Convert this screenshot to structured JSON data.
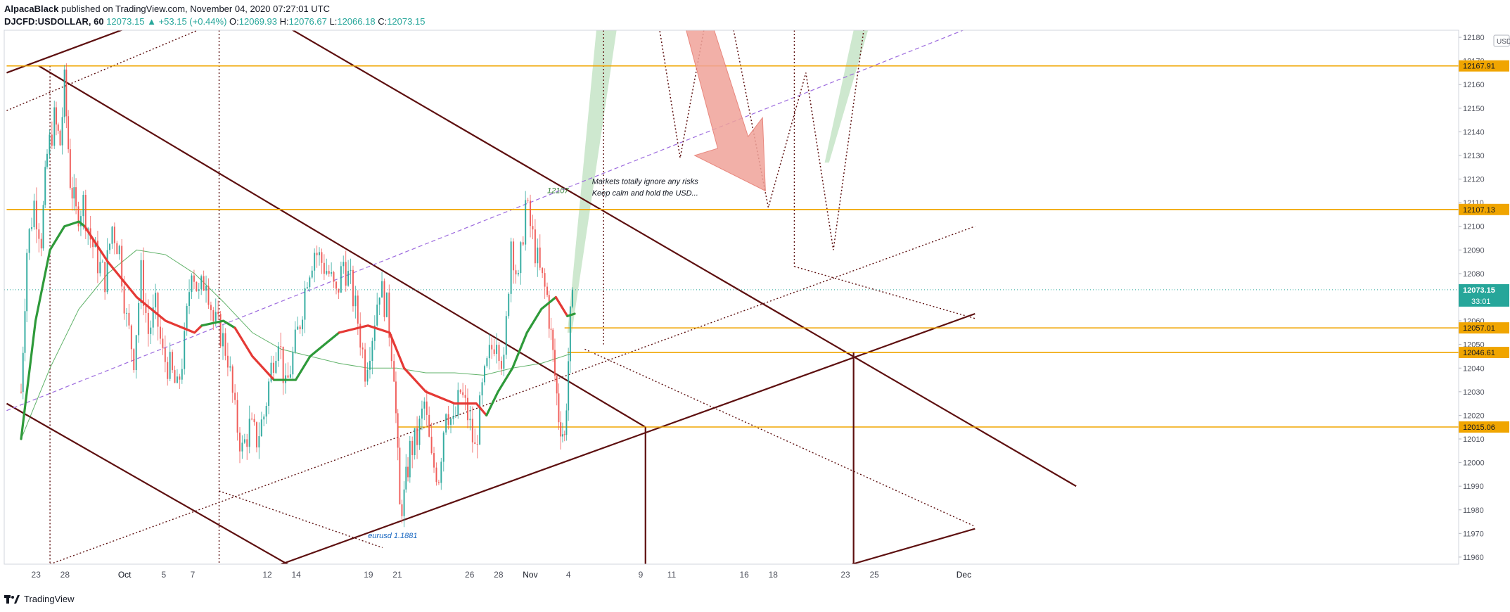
{
  "header": {
    "author": "AlpacaBlack",
    "published_text": "published on TradingView.com, November 04, 2020 07:27:01 UTC",
    "symbol": "DJCFD:USDOLLAR, 60",
    "last": "12073.15",
    "change": "+53.15 (+0.44%)",
    "change_arrow": "▲",
    "o_label": "O:",
    "o_value": "12069.93",
    "h_label": "H:",
    "h_value": "12076.67",
    "l_label": "L:",
    "l_value": "12066.18",
    "c_label": "C:",
    "c_value": "12073.15"
  },
  "footer": {
    "brand": "TradingView",
    "logo_icon": "tradingview-logo-icon"
  },
  "colors": {
    "up": "#26a69a",
    "down": "#ef5350",
    "channel": "#5d0f0f",
    "level": "#f0a500",
    "ema_green": "#2e9a3a",
    "ema_red": "#e53935",
    "dashed_purple": "#9c6ade",
    "arrow_fill": "#f0a39a",
    "fan_green": "#a5d6a7"
  },
  "chart_data": {
    "type": "candlestick",
    "symbol": "DJCFD:USDOLLAR",
    "interval": "60",
    "currency_badge": "USD",
    "ylim": [
      11957,
      12183
    ],
    "y_ticks": [
      11960,
      11970,
      11980,
      11990,
      12000,
      12010,
      12020,
      12030,
      12040,
      12050,
      12060,
      12070,
      12080,
      12090,
      12100,
      12110,
      12120,
      12130,
      12140,
      12150,
      12160,
      12170,
      12180
    ],
    "x_ticks": [
      {
        "label": "23",
        "x": 1
      },
      {
        "label": "28",
        "x": 3
      },
      {
        "label": "Oct",
        "x": 7
      },
      {
        "label": "5",
        "x": 10
      },
      {
        "label": "7",
        "x": 12
      },
      {
        "label": "12",
        "x": 17
      },
      {
        "label": "14",
        "x": 19
      },
      {
        "label": "19",
        "x": 24
      },
      {
        "label": "21",
        "x": 26
      },
      {
        "label": "26",
        "x": 31
      },
      {
        "label": "28",
        "x": 33
      },
      {
        "label": "Nov",
        "x": 35
      },
      {
        "label": "4",
        "x": 38
      },
      {
        "label": "9",
        "x": 43
      },
      {
        "label": "11",
        "x": 45
      },
      {
        "label": "16",
        "x": 50
      },
      {
        "label": "18",
        "x": 52
      },
      {
        "label": "23",
        "x": 57
      },
      {
        "label": "25",
        "x": 59
      },
      {
        "label": "Dec",
        "x": 65
      }
    ],
    "price_labels": [
      {
        "value": 12167.91,
        "text": "12167.91",
        "kind": "level"
      },
      {
        "value": 12107.13,
        "text": "12107.13",
        "kind": "level"
      },
      {
        "value": 12057.01,
        "text": "12057.01",
        "kind": "level"
      },
      {
        "value": 12046.61,
        "text": "12046.61",
        "kind": "level"
      },
      {
        "value": 12015.06,
        "text": "12015.06",
        "kind": "level"
      }
    ],
    "last_price": {
      "value": 12073.15,
      "text": "12073.15",
      "countdown": "33:01"
    },
    "series_close_path": [
      [
        0,
        12030
      ],
      [
        0.4,
        12090
      ],
      [
        0.9,
        12110
      ],
      [
        1.4,
        12095
      ],
      [
        1.8,
        12130
      ],
      [
        2.3,
        12145
      ],
      [
        2.7,
        12135
      ],
      [
        3.0,
        12160
      ],
      [
        3.4,
        12120
      ],
      [
        3.8,
        12105
      ],
      [
        4.3,
        12110
      ],
      [
        4.8,
        12095
      ],
      [
        5.3,
        12085
      ],
      [
        5.8,
        12078
      ],
      [
        6.3,
        12100
      ],
      [
        6.8,
        12090
      ],
      [
        7.3,
        12060
      ],
      [
        7.8,
        12045
      ],
      [
        8.3,
        12080
      ],
      [
        8.8,
        12055
      ],
      [
        9.3,
        12065
      ],
      [
        9.8,
        12045
      ],
      [
        10.3,
        12040
      ],
      [
        10.8,
        12030
      ],
      [
        11.3,
        12050
      ],
      [
        11.8,
        12085
      ],
      [
        12.3,
        12070
      ],
      [
        12.8,
        12080
      ],
      [
        13.3,
        12060
      ],
      [
        13.8,
        12055
      ],
      [
        14.3,
        12045
      ],
      [
        14.8,
        12020
      ],
      [
        15.3,
        12005
      ],
      [
        15.8,
        12015
      ],
      [
        16.3,
        12010
      ],
      [
        16.8,
        12020
      ],
      [
        17.3,
        12040
      ],
      [
        17.8,
        12055
      ],
      [
        18.3,
        12030
      ],
      [
        18.8,
        12045
      ],
      [
        19.3,
        12060
      ],
      [
        19.8,
        12080
      ],
      [
        20.3,
        12090
      ],
      [
        20.8,
        12085
      ],
      [
        21.3,
        12080
      ],
      [
        21.8,
        12070
      ],
      [
        22.3,
        12085
      ],
      [
        22.8,
        12075
      ],
      [
        23.3,
        12060
      ],
      [
        23.8,
        12040
      ],
      [
        24.3,
        12055
      ],
      [
        24.8,
        12075
      ],
      [
        25.3,
        12065
      ],
      [
        25.8,
        12040
      ],
      [
        26.2,
        11980
      ],
      [
        26.5,
        11985
      ],
      [
        26.9,
        12005
      ],
      [
        27.4,
        12010
      ],
      [
        27.9,
        12025
      ],
      [
        28.4,
        12000
      ],
      [
        28.9,
        11995
      ],
      [
        29.4,
        12025
      ],
      [
        29.9,
        12015
      ],
      [
        30.4,
        12030
      ],
      [
        30.9,
        12020
      ],
      [
        31.4,
        12005
      ],
      [
        31.9,
        12030
      ],
      [
        32.4,
        12045
      ],
      [
        32.9,
        12055
      ],
      [
        33.4,
        12040
      ],
      [
        33.9,
        12095
      ],
      [
        34.4,
        12075
      ],
      [
        34.9,
        12110
      ],
      [
        35.4,
        12095
      ],
      [
        35.9,
        12080
      ],
      [
        36.4,
        12070
      ],
      [
        36.8,
        12045
      ],
      [
        37.2,
        12020
      ],
      [
        37.6,
        12010
      ],
      [
        38.0,
        12060
      ],
      [
        38.3,
        12073
      ]
    ],
    "ema_fast_green": [
      [
        0,
        12010
      ],
      [
        1,
        12060
      ],
      [
        2,
        12090
      ],
      [
        3,
        12100
      ],
      [
        4,
        12102
      ],
      [
        4.4,
        12100
      ]
    ],
    "ema_fast_red": [
      [
        4.4,
        12100
      ],
      [
        6,
        12085
      ],
      [
        8,
        12070
      ],
      [
        10,
        12060
      ],
      [
        12,
        12055
      ],
      [
        12.5,
        12058
      ]
    ],
    "ema_fast_green2": [
      [
        12.5,
        12058
      ],
      [
        14,
        12060
      ],
      [
        14.8,
        12057
      ]
    ],
    "ema_fast_red2": [
      [
        14.8,
        12057
      ],
      [
        16,
        12045
      ],
      [
        17.5,
        12035
      ]
    ],
    "ema_fast_green3": [
      [
        17.5,
        12035
      ],
      [
        19,
        12035
      ],
      [
        20,
        12045
      ],
      [
        21,
        12050
      ],
      [
        22,
        12055
      ]
    ],
    "ema_fast_red3": [
      [
        22,
        12055
      ],
      [
        24,
        12058
      ],
      [
        25.5,
        12055
      ],
      [
        26.5,
        12040
      ],
      [
        28,
        12030
      ],
      [
        30,
        12025
      ],
      [
        31.5,
        12025
      ],
      [
        32.2,
        12020
      ]
    ],
    "ema_fast_green4": [
      [
        32.2,
        12020
      ],
      [
        33,
        12030
      ],
      [
        34,
        12040
      ],
      [
        35,
        12055
      ],
      [
        36,
        12065
      ],
      [
        37,
        12070
      ]
    ],
    "ema_fast_red4": [
      [
        37,
        12070
      ],
      [
        37.8,
        12062
      ]
    ],
    "ema_fast_green5": [
      [
        37.8,
        12062
      ],
      [
        38.3,
        12063
      ]
    ],
    "ema_slow": [
      [
        0,
        12010
      ],
      [
        2,
        12040
      ],
      [
        4,
        12065
      ],
      [
        6,
        12080
      ],
      [
        8,
        12090
      ],
      [
        10,
        12088
      ],
      [
        12,
        12080
      ],
      [
        14,
        12068
      ],
      [
        16,
        12055
      ],
      [
        18,
        12048
      ],
      [
        20,
        12045
      ],
      [
        22,
        12042
      ],
      [
        24,
        12040
      ],
      [
        26,
        12040
      ],
      [
        28,
        12038
      ],
      [
        30,
        12038
      ],
      [
        32,
        12037
      ],
      [
        34,
        12040
      ],
      [
        36,
        12042
      ],
      [
        38,
        12046
      ]
    ],
    "annotations": [
      {
        "text": "12107",
        "x": 36.4,
        "y": 12114,
        "color": "#2e7d32"
      },
      {
        "text": "Markets totally ignore any risks",
        "x": 39.5,
        "y": 12118,
        "color": "#131722"
      },
      {
        "text": "Keep calm and hold the USD...",
        "x": 39.5,
        "y": 12113,
        "color": "#131722"
      },
      {
        "text": "eurusd 1.1881",
        "x": 24.0,
        "y": 11968,
        "color": "#1565c0"
      }
    ]
  }
}
